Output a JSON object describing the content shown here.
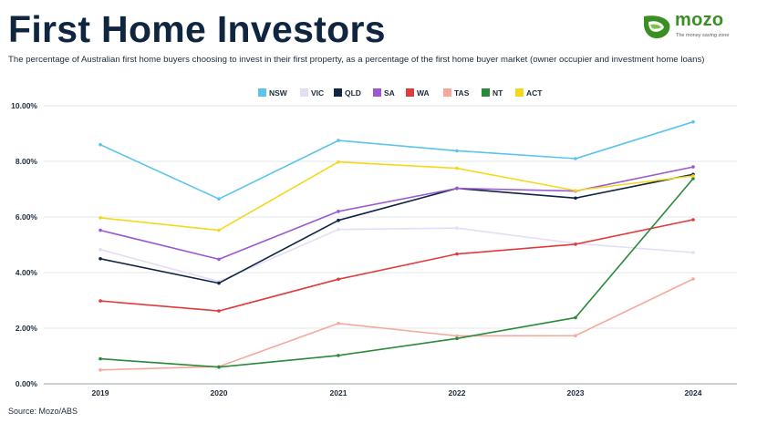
{
  "header": {
    "title": "First Home Investors",
    "subtitle": "The percentage of Australian first home buyers choosing to invest in their first property, as a percentage of the first home buyer market (owner occupier and investment home loans)"
  },
  "logo": {
    "name": "mozo",
    "tagline": "The money saving zone",
    "icon": "mozo-leaf-icon",
    "color": "#3a8f23"
  },
  "footer": {
    "source": "Source: Mozo/ABS"
  },
  "chart_data": {
    "type": "line",
    "title": "",
    "xlabel": "",
    "ylabel": "",
    "categories": [
      "2019",
      "2020",
      "2021",
      "2022",
      "2023",
      "2024"
    ],
    "ylim": [
      0,
      10
    ],
    "yticks": [
      "0.00%",
      "2.00%",
      "4.00%",
      "6.00%",
      "8.00%",
      "10.00%"
    ],
    "grid": true,
    "legend_position": "top-center",
    "series": [
      {
        "name": "NSW",
        "color": "#5bc4ec",
        "values": [
          8.6,
          6.65,
          8.75,
          8.38,
          8.1,
          9.42
        ]
      },
      {
        "name": "VIC",
        "color": "#e4ddf6",
        "values": [
          4.83,
          3.68,
          5.55,
          5.6,
          5.05,
          4.72
        ]
      },
      {
        "name": "QLD",
        "color": "#0f2540",
        "values": [
          4.5,
          3.62,
          5.88,
          7.03,
          6.68,
          7.53
        ]
      },
      {
        "name": "SA",
        "color": "#9a58d2",
        "values": [
          5.52,
          4.48,
          6.2,
          7.03,
          6.93,
          7.8
        ]
      },
      {
        "name": "WA",
        "color": "#e23a3a",
        "values": [
          2.98,
          2.62,
          3.76,
          4.67,
          5.02,
          5.9
        ]
      },
      {
        "name": "TAS",
        "color": "#f4a99c",
        "values": [
          0.5,
          0.62,
          2.17,
          1.72,
          1.73,
          3.77
        ]
      },
      {
        "name": "NT",
        "color": "#2a8a3a",
        "values": [
          0.9,
          0.6,
          1.02,
          1.63,
          2.38,
          7.38
        ]
      },
      {
        "name": "ACT",
        "color": "#f4d81c",
        "values": [
          5.97,
          5.52,
          7.98,
          7.75,
          6.95,
          7.48
        ]
      }
    ]
  }
}
